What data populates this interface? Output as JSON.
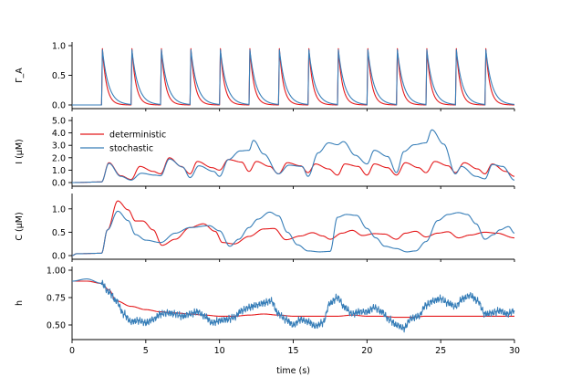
{
  "colors": {
    "deterministic": "#e41a1c",
    "stochastic": "#377eb8"
  },
  "chart_data": [
    {
      "type": "line",
      "panel": "Gamma_A",
      "ylabel": "Γ_A",
      "xlim": [
        0,
        30
      ],
      "ylim": [
        0,
        1.0
      ],
      "yticks": [
        0.0,
        0.5,
        1.0
      ],
      "ytick_labels": [
        "0.0",
        "0.5",
        "1.0"
      ],
      "stimulus_times": [
        2,
        4,
        6,
        8,
        10,
        12,
        14,
        16,
        18,
        20,
        22,
        24,
        26,
        28
      ],
      "series": [
        {
          "name": "deterministic",
          "peak": 0.95,
          "decay_s": 0.28
        },
        {
          "name": "stochastic",
          "peak": 0.93,
          "decay_s": 0.42
        }
      ]
    },
    {
      "type": "line",
      "panel": "I",
      "ylabel": "I (μM)",
      "xlim": [
        0,
        30
      ],
      "ylim": [
        0,
        5.0
      ],
      "yticks": [
        0.0,
        1.0,
        2.0,
        3.0,
        4.0,
        5.0
      ],
      "ytick_labels": [
        "0.0",
        "1.0",
        "2.0",
        "3.0",
        "4.0",
        "5.0"
      ],
      "legend": {
        "position": "top-left",
        "entries": [
          "deterministic",
          "stochastic"
        ]
      },
      "series": [
        {
          "name": "deterministic",
          "x": [
            0,
            2.0,
            2.5,
            3.3,
            4.0,
            4.6,
            5.5,
            6.0,
            6.6,
            7.4,
            8.0,
            8.5,
            9.5,
            10.0,
            10.6,
            11.5,
            12.0,
            12.5,
            13.4,
            14.0,
            14.6,
            15.5,
            16.0,
            16.5,
            17.4,
            18.0,
            18.5,
            19.4,
            20.0,
            20.5,
            21.4,
            22.0,
            22.6,
            23.5,
            24.0,
            24.6,
            25.5,
            26.0,
            26.6,
            27.5,
            28.0,
            28.5,
            29.4,
            30.0
          ],
          "y": [
            0,
            0.05,
            1.6,
            0.55,
            0.25,
            1.3,
            0.9,
            0.7,
            2.0,
            1.3,
            0.7,
            1.7,
            1.2,
            1.0,
            1.85,
            1.65,
            0.9,
            1.7,
            1.3,
            0.7,
            1.6,
            1.35,
            0.8,
            1.5,
            1.1,
            0.6,
            1.5,
            1.3,
            0.6,
            1.5,
            1.2,
            0.6,
            1.6,
            1.2,
            0.8,
            1.7,
            1.35,
            0.8,
            1.6,
            1.1,
            0.7,
            1.5,
            0.9,
            0.5
          ]
        },
        {
          "name": "stochastic",
          "x": [
            0,
            2.0,
            2.5,
            3.3,
            4.0,
            4.7,
            5.6,
            6.0,
            6.6,
            7.5,
            8.0,
            8.6,
            9.6,
            10.0,
            10.6,
            11.4,
            12.0,
            12.3,
            13.0,
            14.0,
            14.7,
            15.6,
            16.0,
            16.7,
            17.4,
            18.0,
            18.4,
            19.2,
            20.0,
            20.5,
            21.4,
            22.0,
            22.5,
            23.2,
            24.0,
            24.4,
            25.2,
            26.0,
            26.4,
            27.4,
            28.0,
            28.5,
            29.2,
            30.0
          ],
          "y": [
            0,
            0.05,
            1.55,
            0.5,
            0.2,
            0.75,
            0.6,
            0.55,
            1.9,
            1.25,
            0.4,
            1.35,
            0.9,
            0.5,
            1.85,
            2.55,
            2.6,
            3.4,
            2.3,
            0.7,
            1.4,
            1.3,
            0.5,
            2.4,
            3.2,
            3.05,
            3.3,
            2.2,
            1.5,
            2.6,
            2.1,
            0.8,
            2.5,
            3.05,
            3.2,
            4.25,
            3.1,
            0.7,
            1.3,
            0.5,
            0.3,
            1.45,
            1.3,
            0.2
          ]
        }
      ]
    },
    {
      "type": "line",
      "panel": "C",
      "ylabel": "C (μM)",
      "xlim": [
        0,
        30
      ],
      "ylim": [
        0,
        1.25
      ],
      "yticks": [
        0.0,
        0.5,
        1.0
      ],
      "ytick_labels": [
        "0.0",
        "0.5",
        "1.0"
      ],
      "series": [
        {
          "name": "deterministic",
          "x": [
            0,
            0.3,
            2.0,
            2.4,
            3.1,
            3.8,
            4.3,
            4.8,
            5.5,
            6.1,
            7.0,
            8.0,
            8.9,
            9.7,
            10.2,
            11.0,
            12.0,
            13.0,
            13.7,
            14.5,
            15.5,
            16.3,
            17.0,
            17.5,
            18.3,
            19.0,
            19.7,
            20.5,
            21.2,
            22.0,
            22.6,
            23.3,
            24.0,
            24.8,
            25.5,
            26.2,
            27.0,
            28.0,
            28.8,
            30.0
          ],
          "y": [
            0.0,
            0.04,
            0.05,
            0.55,
            1.17,
            0.98,
            0.74,
            0.74,
            0.55,
            0.22,
            0.35,
            0.6,
            0.68,
            0.52,
            0.28,
            0.25,
            0.41,
            0.57,
            0.58,
            0.34,
            0.42,
            0.49,
            0.42,
            0.35,
            0.48,
            0.54,
            0.43,
            0.47,
            0.46,
            0.35,
            0.48,
            0.52,
            0.4,
            0.48,
            0.51,
            0.38,
            0.44,
            0.5,
            0.48,
            0.38
          ]
        },
        {
          "name": "stochastic",
          "x": [
            0,
            0.3,
            2.0,
            2.4,
            3.1,
            3.8,
            4.3,
            5.0,
            6.0,
            7.0,
            8.0,
            9.3,
            10.0,
            10.7,
            11.3,
            12.0,
            12.6,
            13.4,
            14.0,
            14.6,
            15.3,
            16.0,
            16.8,
            17.5,
            18.0,
            18.6,
            19.3,
            20.0,
            20.6,
            21.2,
            22.0,
            22.7,
            23.3,
            24.0,
            24.8,
            25.5,
            26.2,
            26.8,
            27.4,
            28.0,
            28.6,
            29.0,
            29.6,
            30.0
          ],
          "y": [
            0.0,
            0.04,
            0.05,
            0.55,
            0.95,
            0.75,
            0.45,
            0.33,
            0.28,
            0.48,
            0.6,
            0.64,
            0.53,
            0.2,
            0.35,
            0.6,
            0.78,
            0.93,
            0.85,
            0.5,
            0.23,
            0.1,
            0.08,
            0.09,
            0.82,
            0.88,
            0.86,
            0.58,
            0.38,
            0.2,
            0.15,
            0.08,
            0.1,
            0.3,
            0.75,
            0.88,
            0.92,
            0.88,
            0.68,
            0.35,
            0.45,
            0.55,
            0.62,
            0.48
          ]
        }
      ]
    },
    {
      "type": "line",
      "panel": "h",
      "ylabel": "h",
      "xlim": [
        0,
        30
      ],
      "ylim": [
        0.4,
        1.0
      ],
      "yticks": [
        0.5,
        0.75,
        1.0
      ],
      "ytick_labels": [
        "0.50",
        "0.75",
        "1.00"
      ],
      "xlabel": "time (s)",
      "xticks": [
        0,
        5,
        10,
        15,
        20,
        25,
        30
      ],
      "xtick_labels": [
        "0",
        "5",
        "10",
        "15",
        "20",
        "25",
        "30"
      ],
      "series": [
        {
          "name": "deterministic",
          "x": [
            0,
            1.0,
            2.0,
            2.5,
            3.0,
            4.0,
            5.0,
            6.0,
            7.0,
            8.0,
            9.0,
            10.0,
            11.0,
            12.0,
            13.0,
            14.0,
            15.0,
            16.0,
            17.0,
            18.0,
            19.0,
            20.0,
            21.0,
            22.0,
            23.0,
            24.0,
            25.0,
            26.0,
            27.0,
            28.0,
            29.0,
            30.0
          ],
          "y": [
            0.9,
            0.9,
            0.88,
            0.82,
            0.72,
            0.67,
            0.64,
            0.62,
            0.61,
            0.6,
            0.59,
            0.58,
            0.58,
            0.59,
            0.6,
            0.59,
            0.58,
            0.58,
            0.58,
            0.58,
            0.59,
            0.58,
            0.58,
            0.57,
            0.57,
            0.58,
            0.58,
            0.58,
            0.58,
            0.58,
            0.58,
            0.58
          ]
        },
        {
          "name": "stochastic",
          "x": [
            0,
            1.0,
            2.0,
            2.5,
            3.0,
            3.5,
            4.0,
            4.5,
            5.0,
            5.5,
            6.0,
            6.5,
            7.0,
            7.5,
            8.0,
            8.5,
            9.0,
            9.5,
            10.0,
            10.5,
            11.0,
            11.5,
            12.0,
            12.5,
            13.0,
            13.5,
            14.0,
            14.5,
            15.0,
            15.5,
            16.0,
            16.5,
            17.0,
            17.5,
            18.0,
            18.5,
            19.0,
            19.5,
            20.0,
            20.5,
            21.0,
            21.5,
            22.0,
            22.5,
            23.0,
            23.5,
            24.0,
            24.5,
            25.0,
            25.5,
            26.0,
            26.5,
            27.0,
            27.5,
            28.0,
            28.5,
            29.0,
            29.5,
            30.0
          ],
          "y": [
            0.9,
            0.92,
            0.88,
            0.8,
            0.72,
            0.6,
            0.53,
            0.54,
            0.52,
            0.55,
            0.6,
            0.61,
            0.6,
            0.58,
            0.6,
            0.62,
            0.58,
            0.52,
            0.54,
            0.55,
            0.57,
            0.63,
            0.66,
            0.68,
            0.7,
            0.72,
            0.6,
            0.55,
            0.5,
            0.55,
            0.53,
            0.49,
            0.52,
            0.7,
            0.75,
            0.66,
            0.6,
            0.62,
            0.62,
            0.66,
            0.62,
            0.55,
            0.5,
            0.47,
            0.56,
            0.58,
            0.68,
            0.72,
            0.74,
            0.7,
            0.67,
            0.74,
            0.77,
            0.72,
            0.6,
            0.61,
            0.63,
            0.6,
            0.63
          ]
        }
      ]
    }
  ]
}
